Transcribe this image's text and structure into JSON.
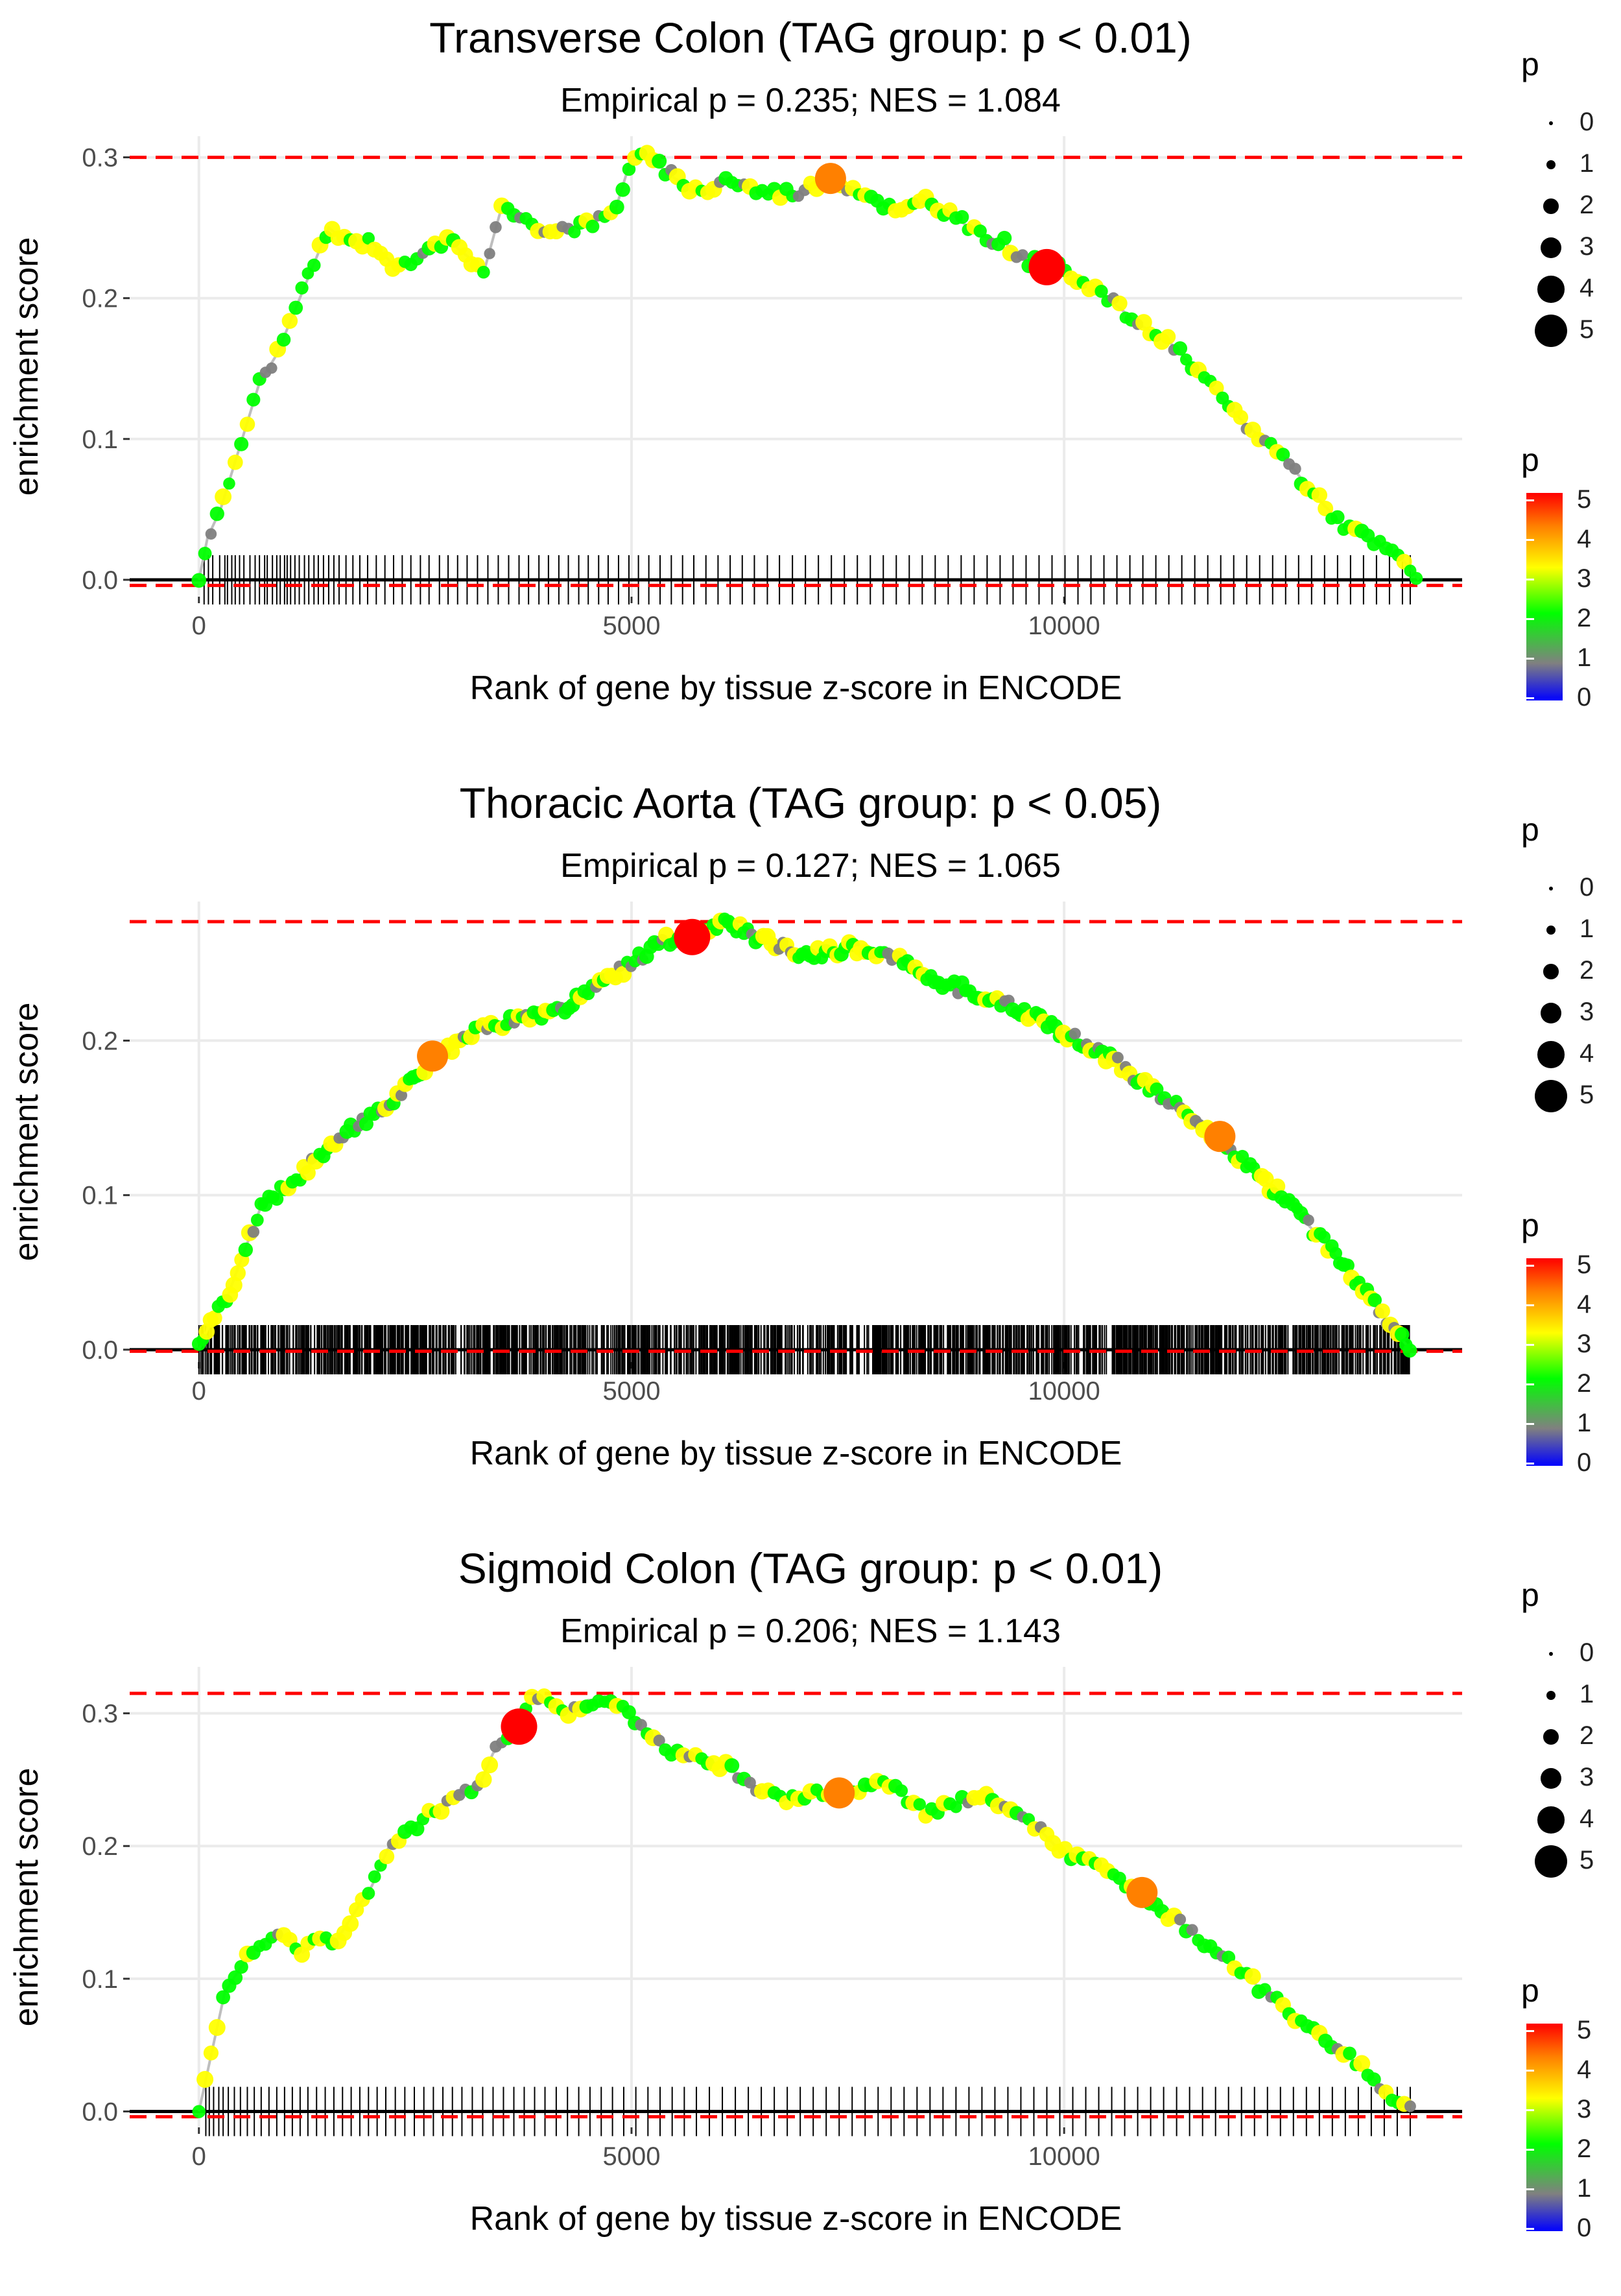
{
  "shared": {
    "xlabel": "Rank of gene by tissue z-score in ENCODE",
    "ylabel": "enrichment score",
    "xticks": [
      "0",
      "5000",
      "10000"
    ],
    "size_legend_title": "p",
    "size_legend_labels": [
      "0",
      "1",
      "2",
      "3",
      "4",
      "5"
    ],
    "color_legend_title": "p",
    "color_legend_labels": [
      "5",
      "4",
      "3",
      "2",
      "1",
      "0"
    ],
    "colors": {
      "peak_line": "#FF0000",
      "curve": "#BEBEBE",
      "grid": "#EBEBEB",
      "axis_line": "#000000",
      "point_scale": [
        "#0000FF",
        "#808080",
        "#00FF00",
        "#FFFF00",
        "#FF8000",
        "#FF0000"
      ]
    }
  },
  "chart_data": [
    {
      "type": "scatter",
      "title": "Transverse Colon (TAG group: p < 0.01)",
      "subtitle": "Empirical p = 0.235; NES = 1.084",
      "xlabel": "Rank of gene by tissue z-score in ENCODE",
      "ylabel": "enrichment score",
      "xlim": [
        -800,
        14600
      ],
      "ylim": [
        -0.012,
        0.315
      ],
      "yticks": [
        0.0,
        0.1,
        0.2,
        0.3
      ],
      "ytick_labels": [
        "0.0",
        "0.1",
        "0.2",
        "0.3"
      ],
      "xticks": [
        0,
        5000,
        10000
      ],
      "hline_max": 0.3,
      "hline_min": -0.004,
      "series": [
        {
          "name": "running enrichment score",
          "x": [
            0,
            100,
            250,
            500,
            700,
            900,
            1100,
            1300,
            1500,
            1700,
            2000,
            2300,
            2500,
            2700,
            2900,
            3100,
            3300,
            3500,
            3700,
            3900,
            4100,
            4300,
            4600,
            4800,
            5000,
            5200,
            5500,
            5800,
            6100,
            6500,
            6900,
            7300,
            7700,
            8100,
            8400,
            8700,
            9000,
            9300,
            9600,
            9800,
            10000,
            10300,
            10600,
            10900,
            11200,
            11500,
            11800,
            12100,
            12500,
            12900,
            13200,
            13500,
            13900,
            14100
          ],
          "y": [
            0.0,
            0.03,
            0.05,
            0.1,
            0.14,
            0.16,
            0.19,
            0.22,
            0.25,
            0.24,
            0.24,
            0.22,
            0.23,
            0.24,
            0.24,
            0.23,
            0.22,
            0.265,
            0.255,
            0.25,
            0.25,
            0.25,
            0.255,
            0.26,
            0.3,
            0.3,
            0.285,
            0.275,
            0.285,
            0.275,
            0.275,
            0.285,
            0.275,
            0.26,
            0.27,
            0.26,
            0.245,
            0.24,
            0.225,
            0.225,
            0.22,
            0.21,
            0.195,
            0.18,
            0.17,
            0.15,
            0.13,
            0.11,
            0.09,
            0.06,
            0.04,
            0.03,
            0.015,
            0.0
          ]
        }
      ],
      "highlight_points": [
        {
          "x": 7300,
          "y": 0.285,
          "p": 4
        },
        {
          "x": 9800,
          "y": 0.222,
          "p": 5
        }
      ],
      "hit_ranks": [
        60,
        110,
        160,
        240,
        300,
        330,
        380,
        420,
        470,
        520,
        590,
        650,
        700,
        760,
        790,
        850,
        900,
        940,
        990,
        1020,
        1060,
        1110,
        1160,
        1220,
        1270,
        1330,
        1380,
        1440,
        1500,
        1560,
        1620,
        1700,
        1780,
        1860,
        1950,
        2050,
        2150,
        2250,
        2350,
        2450,
        2560,
        2660,
        2780,
        2880,
        2990,
        3100,
        3220,
        3340,
        3460,
        3580,
        3700,
        3810,
        3930,
        4040,
        4160,
        4270,
        4390,
        4500,
        4620,
        4730,
        4850,
        4970,
        5080,
        5200,
        5330,
        5460,
        5590,
        5720,
        5860,
        6000,
        6140,
        6280,
        6420,
        6570,
        6710,
        6860,
        7010,
        7160,
        7310,
        7460,
        7610,
        7760,
        7910,
        8060,
        8210,
        8360,
        8510,
        8660,
        8810,
        8960,
        9110,
        9260,
        9410,
        9560,
        9710,
        9860,
        10010,
        10160,
        10310,
        10460,
        10610,
        10760,
        10910,
        11060,
        11210,
        11360,
        11510,
        11660,
        11810,
        11960,
        12110,
        12260,
        12410,
        12560,
        12710,
        12860,
        13010,
        13160,
        13310,
        13460,
        13610,
        13760,
        13910,
        14000
      ]
    },
    {
      "type": "scatter",
      "title": "Thoracic Aorta (TAG group: p < 0.05)",
      "subtitle": "Empirical p = 0.127; NES = 1.065",
      "xlabel": "Rank of gene by tissue z-score in ENCODE",
      "ylabel": "enrichment score",
      "xlim": [
        -800,
        14600
      ],
      "ylim": [
        -0.008,
        0.29
      ],
      "yticks": [
        0.0,
        0.1,
        0.2
      ],
      "ytick_labels": [
        "0.0",
        "0.1",
        "0.2"
      ],
      "xticks": [
        0,
        5000,
        10000
      ],
      "hline_max": 0.277,
      "hline_min": -0.001,
      "series": [
        {
          "name": "running enrichment score",
          "x": [
            0,
            150,
            300,
            500,
            700,
            1000,
            1400,
            1800,
            2200,
            2600,
            3000,
            3400,
            3800,
            4200,
            4600,
            5000,
            5400,
            5800,
            6100,
            6500,
            7000,
            7500,
            8000,
            8500,
            9000,
            9500,
            10000,
            10500,
            11000,
            11500,
            12000,
            12500,
            13000,
            13500,
            14000
          ],
          "y": [
            0.0,
            0.02,
            0.03,
            0.06,
            0.09,
            0.105,
            0.125,
            0.145,
            0.16,
            0.18,
            0.2,
            0.21,
            0.215,
            0.22,
            0.235,
            0.25,
            0.265,
            0.27,
            0.277,
            0.265,
            0.255,
            0.26,
            0.255,
            0.24,
            0.23,
            0.22,
            0.205,
            0.19,
            0.17,
            0.15,
            0.125,
            0.1,
            0.07,
            0.035,
            0.0
          ]
        }
      ],
      "highlight_points": [
        {
          "x": 2700,
          "y": 0.19,
          "p": 4
        },
        {
          "x": 5700,
          "y": 0.267,
          "p": 5
        },
        {
          "x": 11800,
          "y": 0.138,
          "p": 4
        }
      ],
      "hit_count": 1400
    },
    {
      "type": "scatter",
      "title": "Sigmoid Colon (TAG group: p < 0.01)",
      "subtitle": "Empirical p = 0.206; NES = 1.143",
      "xlabel": "Rank of gene by tissue z-score in ENCODE",
      "ylabel": "enrichment score",
      "xlim": [
        -800,
        14600
      ],
      "ylim": [
        -0.012,
        0.335
      ],
      "yticks": [
        0.0,
        0.1,
        0.2,
        0.3
      ],
      "ytick_labels": [
        "0.0",
        "0.1",
        "0.2",
        "0.3"
      ],
      "xticks": [
        0,
        5000,
        10000
      ],
      "hline_max": 0.315,
      "hline_min": -0.004,
      "series": [
        {
          "name": "running enrichment score",
          "x": [
            0,
            100,
            200,
            300,
            400,
            600,
            800,
            1000,
            1200,
            1400,
            1600,
            1800,
            2000,
            2200,
            2400,
            2600,
            2800,
            3000,
            3200,
            3400,
            3700,
            3900,
            4100,
            4300,
            4500,
            4700,
            4900,
            5200,
            5500,
            5800,
            6100,
            6500,
            6900,
            7200,
            7500,
            7800,
            8100,
            8400,
            8700,
            9000,
            9300,
            9600,
            9900,
            10200,
            10500,
            10800,
            11100,
            11400,
            11700,
            12000,
            12300,
            12600,
            12900,
            13200,
            13500,
            13800,
            14000
          ],
          "y": [
            0.0,
            0.03,
            0.06,
            0.09,
            0.1,
            0.12,
            0.13,
            0.13,
            0.12,
            0.13,
            0.13,
            0.15,
            0.17,
            0.2,
            0.21,
            0.22,
            0.23,
            0.24,
            0.24,
            0.27,
            0.29,
            0.315,
            0.305,
            0.3,
            0.31,
            0.31,
            0.305,
            0.28,
            0.27,
            0.265,
            0.26,
            0.24,
            0.235,
            0.24,
            0.24,
            0.25,
            0.24,
            0.225,
            0.23,
            0.24,
            0.23,
            0.22,
            0.2,
            0.19,
            0.18,
            0.165,
            0.15,
            0.14,
            0.12,
            0.11,
            0.09,
            0.075,
            0.06,
            0.045,
            0.03,
            0.01,
            0.0
          ]
        }
      ],
      "highlight_points": [
        {
          "x": 3700,
          "y": 0.29,
          "p": 5
        },
        {
          "x": 7400,
          "y": 0.24,
          "p": 4
        },
        {
          "x": 10900,
          "y": 0.165,
          "p": 4
        }
      ],
      "hit_ranks": [
        80,
        120,
        170,
        230,
        280,
        340,
        410,
        480,
        560,
        640,
        720,
        810,
        900,
        990,
        1080,
        1170,
        1260,
        1360,
        1460,
        1560,
        1660,
        1760,
        1860,
        1960,
        2060,
        2160,
        2270,
        2380,
        2490,
        2600,
        2710,
        2820,
        2930,
        3040,
        3160,
        3280,
        3400,
        3520,
        3640,
        3760,
        3880,
        4000,
        4130,
        4260,
        4390,
        4520,
        4650,
        4780,
        4910,
        5050,
        5190,
        5330,
        5470,
        5610,
        5750,
        5900,
        6050,
        6200,
        6350,
        6500,
        6650,
        6800,
        6950,
        7100,
        7250,
        7400,
        7550,
        7700,
        7850,
        8000,
        8150,
        8300,
        8450,
        8600,
        8750,
        8900,
        9050,
        9200,
        9350,
        9500,
        9650,
        9800,
        9950,
        10100,
        10250,
        10400,
        10550,
        10700,
        10850,
        11000,
        11150,
        11300,
        11450,
        11600,
        11750,
        11900,
        12050,
        12200,
        12350,
        12500,
        12650,
        12800,
        12950,
        13100,
        13250,
        13400,
        13550,
        13700,
        13850,
        14000
      ]
    }
  ]
}
